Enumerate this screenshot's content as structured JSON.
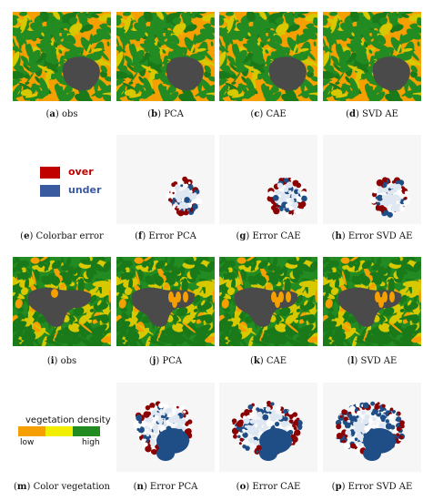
{
  "rows": [
    {
      "panels": [
        {
          "letter": "a",
          "label": "obs",
          "kind": "veg",
          "burn": "top"
        },
        {
          "letter": "b",
          "label": "PCA",
          "kind": "veg",
          "burn": "top"
        },
        {
          "letter": "c",
          "label": "CAE",
          "kind": "veg",
          "burn": "top"
        },
        {
          "letter": "d",
          "label": "SVD AE",
          "kind": "veg",
          "burn": "top"
        }
      ]
    },
    {
      "panels": [
        {
          "letter": "e",
          "label": "Colorbar error",
          "kind": "legend-error"
        },
        {
          "letter": "f",
          "label": "Error PCA",
          "kind": "err",
          "burn": "top"
        },
        {
          "letter": "g",
          "label": "Error CAE",
          "kind": "err",
          "burn": "top"
        },
        {
          "letter": "h",
          "label": "Error SVD AE",
          "kind": "err",
          "burn": "top"
        }
      ]
    },
    {
      "panels": [
        {
          "letter": "i",
          "label": "obs",
          "kind": "veg",
          "burn": "bottom"
        },
        {
          "letter": "j",
          "label": "PCA",
          "kind": "veg",
          "burn": "bottom"
        },
        {
          "letter": "k",
          "label": "CAE",
          "kind": "veg",
          "burn": "bottom"
        },
        {
          "letter": "l",
          "label": "SVD AE",
          "kind": "veg",
          "burn": "bottom"
        }
      ]
    },
    {
      "panels": [
        {
          "letter": "m",
          "label": "Color vegetation",
          "kind": "legend-veg"
        },
        {
          "letter": "n",
          "label": "Error PCA",
          "kind": "err",
          "burn": "bottom"
        },
        {
          "letter": "o",
          "label": "Error CAE",
          "kind": "err",
          "burn": "bottom"
        },
        {
          "letter": "p",
          "label": "Error SVD AE",
          "kind": "err",
          "burn": "bottom"
        }
      ]
    }
  ],
  "legend_error": {
    "over": {
      "label": "over",
      "color": "#c00000"
    },
    "under": {
      "label": "under",
      "color": "#3a5aa0"
    }
  },
  "legend_veg": {
    "title": "vegetation density",
    "low": "low",
    "high": "high",
    "colors": [
      "#f5a000",
      "#f2ee00",
      "#228b22"
    ]
  },
  "palette": {
    "orange": "#f5a000",
    "yellow": "#d8c800",
    "green": "#228b22",
    "dark_green": "#1a7a1a",
    "burn": "#4a4a4a",
    "err_bg": "#f6f6f6",
    "err_red": "#8b0000",
    "err_blue": "#1f4e86"
  }
}
